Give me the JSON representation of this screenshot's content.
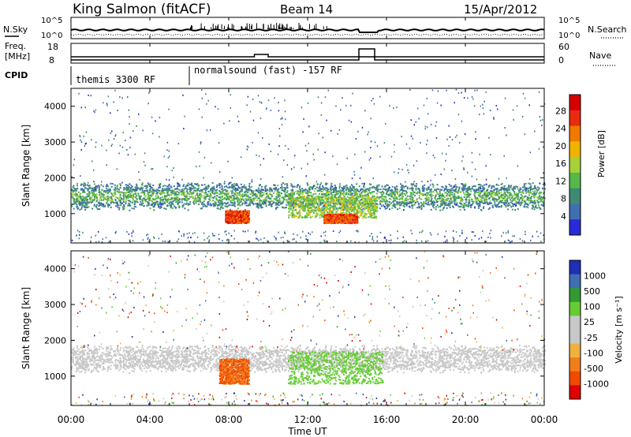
{
  "header": {
    "station": "King Salmon (fitACF)",
    "beam": "Beam 14",
    "date": "15/Apr/2012"
  },
  "noise_panel": {
    "left_label": "N.Sky",
    "right_label": "N.Search",
    "ticks": [
      "10^5",
      "10^0"
    ]
  },
  "freq_panel": {
    "left_label_line1": "Freq.",
    "left_label_line2": "[MHz]",
    "left_ticks": [
      "18",
      "8"
    ],
    "right_label": "Nave",
    "right_ticks": [
      "60",
      "0"
    ]
  },
  "cpid_panel": {
    "label": "CPID",
    "segments": [
      {
        "text": "themis 3300 RF",
        "start_hour": 0,
        "end_hour": 6
      },
      {
        "text": "normalsound (fast) -157 RF",
        "start_hour": 6,
        "end_hour": 24
      }
    ]
  },
  "power_panel": {
    "ylabel": "Slant Range [km]",
    "yticks": [
      "4000",
      "3000",
      "2000",
      "1000"
    ],
    "colorbar_label": "Power [dB]",
    "colorbar_ticks": [
      "28",
      "24",
      "20",
      "16",
      "12",
      "8",
      "4"
    ]
  },
  "velocity_panel": {
    "ylabel": "Slant Range [km]",
    "yticks": [
      "4000",
      "3000",
      "2000",
      "1000"
    ],
    "colorbar_label": "Velocity [m s⁻¹]",
    "colorbar_ticks": [
      "1000",
      "500",
      "100",
      "25",
      "-25",
      "-100",
      "-500",
      "-1000"
    ]
  },
  "xaxis": {
    "ticks": [
      "00:00",
      "04:00",
      "08:00",
      "12:00",
      "16:00",
      "20:00",
      "00:00"
    ],
    "label": "Time UT"
  },
  "colors": {
    "power_scale": [
      "#2a2ad6",
      "#3f6fb0",
      "#3f8a73",
      "#55b84a",
      "#a6d13a",
      "#f0b400",
      "#f07a00",
      "#e82a10",
      "#d40000"
    ],
    "velocity_scale": [
      "#e00000",
      "#f04a00",
      "#f07f1a",
      "#f0b040",
      "#c8c8c8",
      "#c8c8c8",
      "#66cc33",
      "#339933",
      "#3f6fb0",
      "#1f2fb8"
    ]
  },
  "chart_data": {
    "type": "heatmap",
    "x_range_hours": [
      0,
      24
    ],
    "y_range_km": [
      180,
      4500
    ],
    "power": {
      "units": "dB",
      "range": [
        0,
        30
      ],
      "main_band_km": [
        1200,
        1800
      ],
      "features": [
        {
          "start_hour": 7.8,
          "end_hour": 9.0,
          "range_km": [
            750,
            1100
          ],
          "level_db": 28
        },
        {
          "start_hour": 11.0,
          "end_hour": 15.5,
          "range_km": [
            900,
            1500
          ],
          "level_db": 18
        },
        {
          "start_hour": 12.8,
          "end_hour": 14.5,
          "range_km": [
            750,
            1000
          ],
          "level_db": 28
        }
      ]
    },
    "velocity": {
      "units": "m/s",
      "range": [
        -1000,
        1000
      ],
      "features": [
        {
          "start_hour": 7.5,
          "end_hour": 9.0,
          "range_km": [
            800,
            1500
          ],
          "velocity": -300
        },
        {
          "start_hour": 11.0,
          "end_hour": 15.8,
          "range_km": [
            800,
            1700
          ],
          "velocity": 150
        }
      ]
    }
  }
}
